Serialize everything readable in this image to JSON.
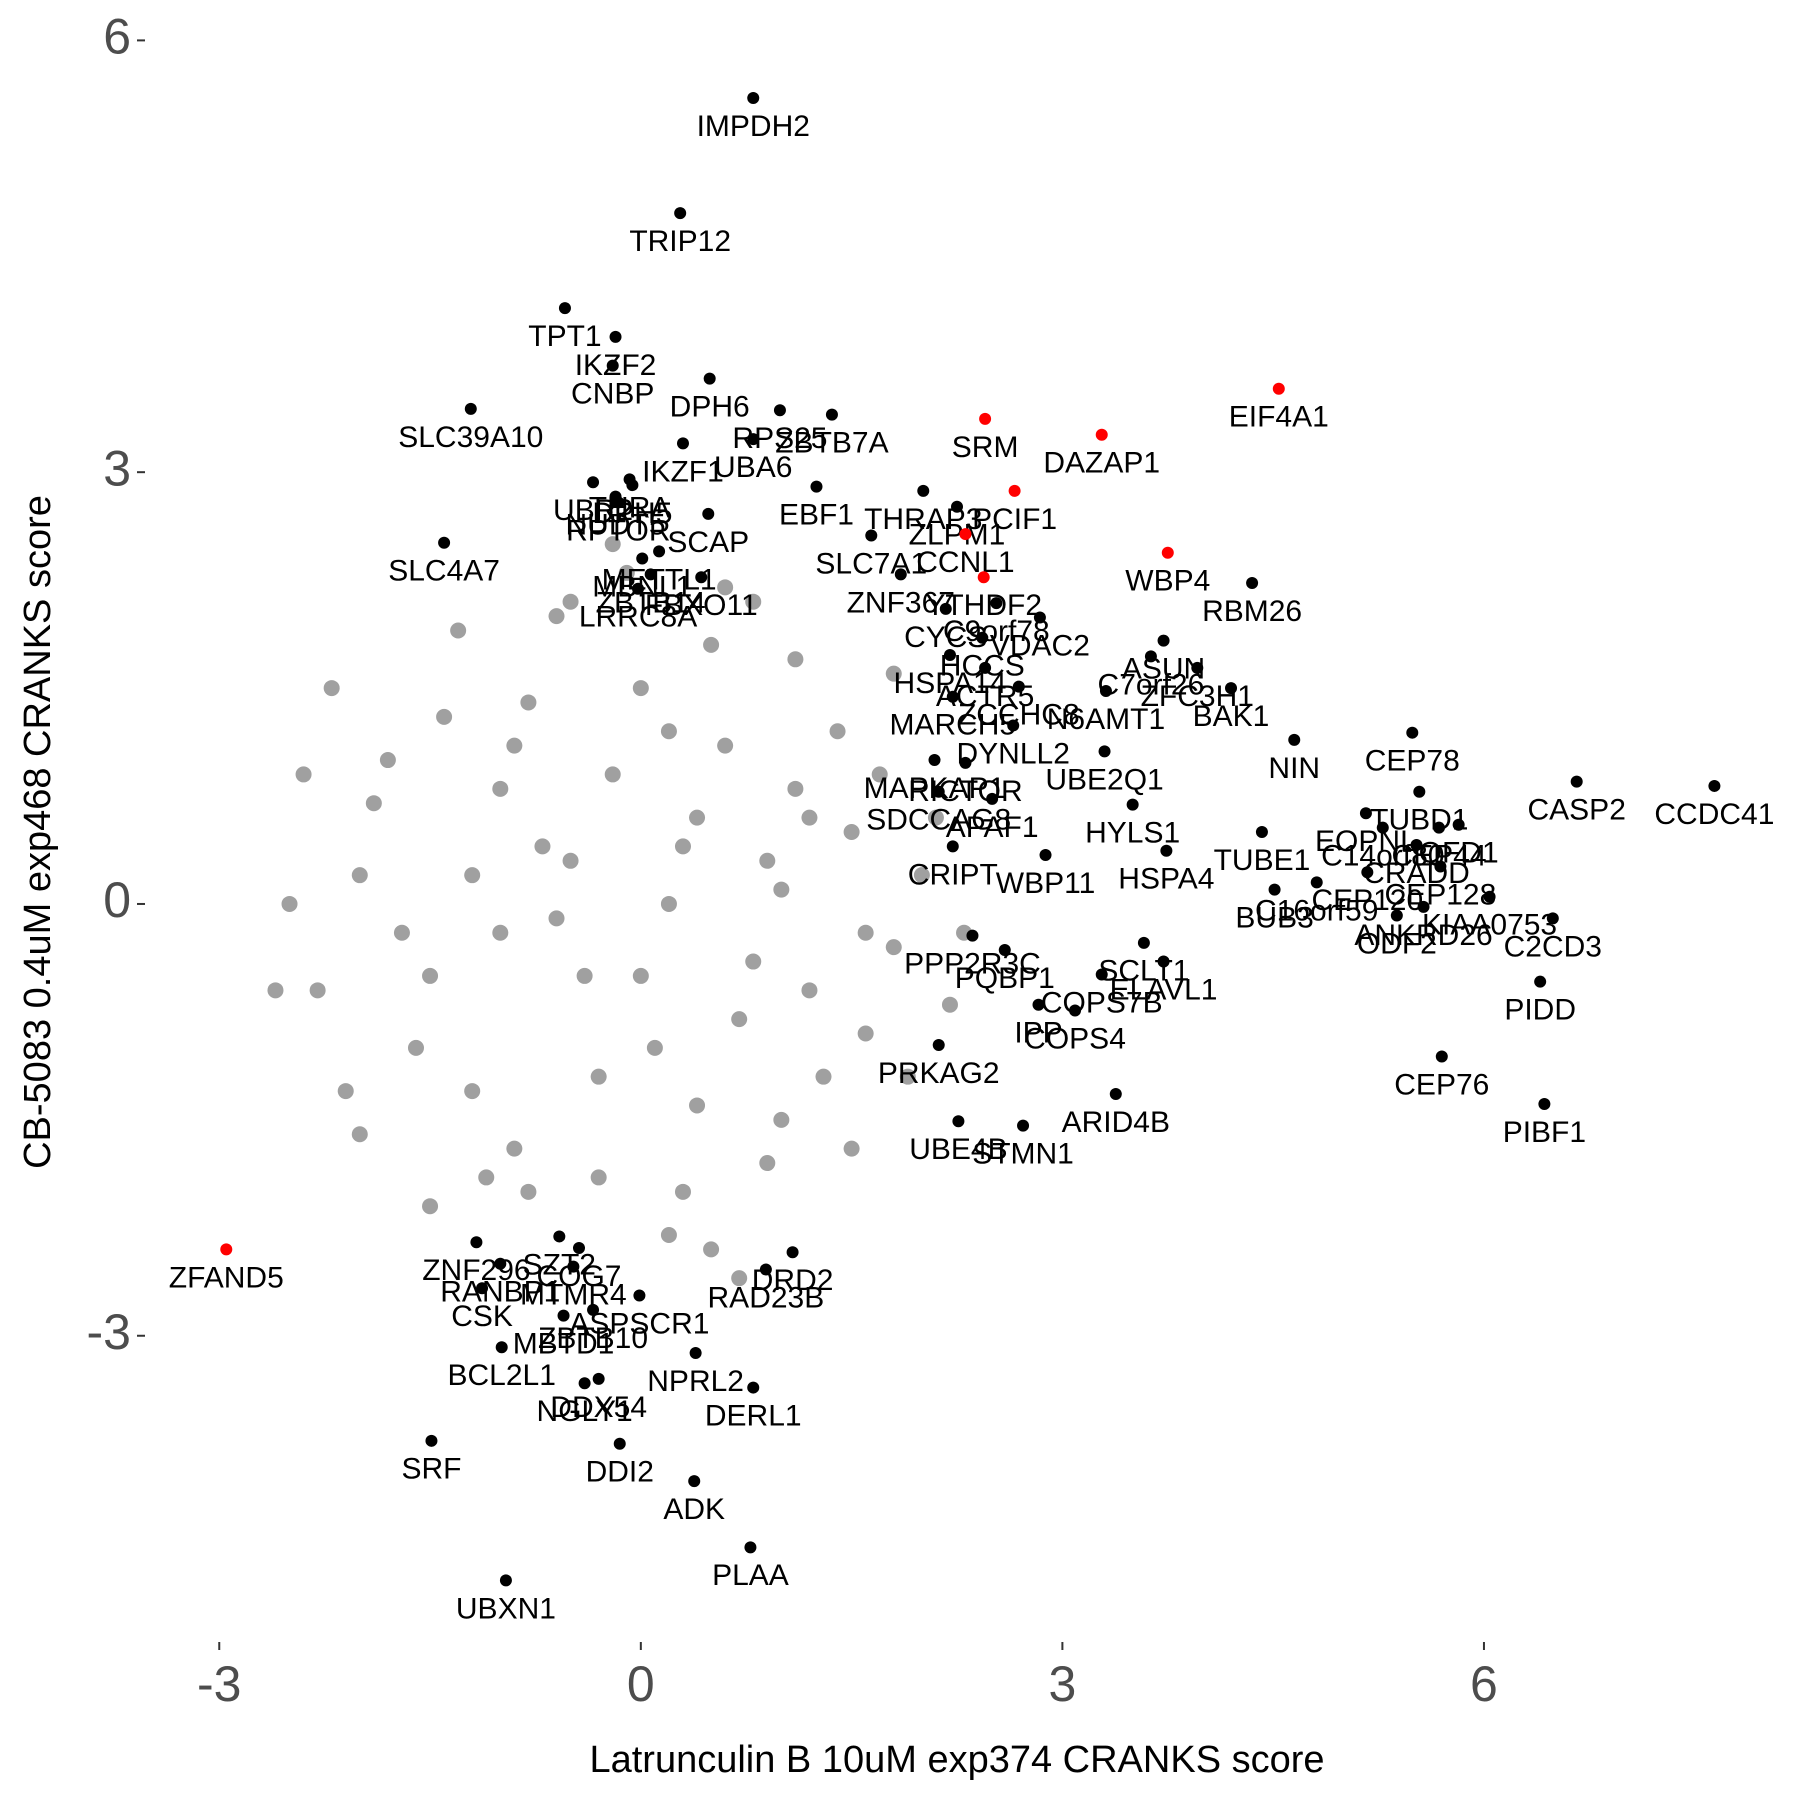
{
  "chart_data": {
    "type": "scatter",
    "xlabel": "Latrunculin B 10uM exp374 CRANKS score",
    "ylabel": "CB-5083 0.4uM exp468 CRANKS score",
    "xlim": [
      -3.5,
      8
    ],
    "ylim": [
      -5.1,
      6.1
    ],
    "xticks": [
      -3,
      0,
      3,
      6
    ],
    "yticks": [
      -3,
      0,
      3,
      6
    ],
    "series": [
      {
        "color": "#a0a0a0",
        "x": [
          0.2,
          -0.5,
          0.8,
          -1.0,
          1.2,
          -1.5,
          1.6,
          -2.0,
          2.0,
          0.0,
          0.5,
          -0.8,
          1.0,
          -1.2,
          1.4,
          -1.8,
          1.8,
          -2.3,
          0.3,
          -0.3,
          0.6,
          -0.6,
          0.9,
          -0.9,
          1.1,
          -1.1,
          1.3,
          -1.4,
          1.5,
          -1.6,
          0.1,
          -0.2,
          0.4,
          -0.4,
          0.7,
          -0.7,
          1.7,
          -1.7,
          1.9,
          -1.9,
          0.2,
          -0.1,
          0.5,
          -0.5,
          0.8,
          -0.8,
          1.0,
          -1.0,
          1.2,
          -1.2,
          -2.2,
          -2.5,
          -2.6,
          2.1,
          2.2,
          -2.1,
          0.0,
          0.3,
          -0.3,
          0.6,
          1.5,
          -1.3,
          0.9,
          -0.6,
          0.4,
          -0.9,
          1.1,
          -2.4,
          2.3,
          -2.0,
          1.8,
          -1.5,
          0.7,
          -0.2,
          0.2,
          1.6
        ],
        "y": [
          0.0,
          0.3,
          -0.4,
          0.8,
          0.6,
          -0.5,
          -0.9,
          0.2,
          0.2,
          1.5,
          1.8,
          1.4,
          -1.5,
          -1.3,
          1.2,
          1.0,
          -0.3,
          -0.6,
          -2.0,
          -1.9,
          2.2,
          2.0,
          -1.8,
          -1.7,
          1.7,
          -1.9,
          -1.2,
          1.3,
          0.5,
          -1.0,
          -1.0,
          0.9,
          0.6,
          -0.5,
          -0.8,
          0.4,
          0.9,
          -0.2,
          -1.2,
          0.7,
          -2.3,
          2.3,
          -2.4,
          2.1,
          2.1,
          -2.0,
          0.1,
          -0.2,
          -0.6,
          0.2,
          1.5,
          0.0,
          -0.6,
          0.6,
          -0.7,
          -1.3,
          -0.5,
          0.4,
          -1.2,
          1.1,
          -1.7,
          1.9,
          0.3,
          -0.1,
          -1.4,
          1.1,
          0.8,
          0.9,
          -0.2,
          -1.6,
          1.6,
          -2.1,
          -2.6,
          2.5,
          1.2,
          -0.2
        ]
      },
      {
        "color": "#000000",
        "x": [
          0.8,
          0.28,
          -0.54,
          -0.18,
          -0.2,
          0.49,
          -1.21,
          -0.08,
          0.3,
          0.8,
          1.36,
          0.99,
          -0.34,
          -0.06,
          1.25,
          2.01,
          2.25,
          1.64,
          -1.4,
          -0.16,
          0.48,
          -0.18,
          0.13,
          2.53,
          3.72,
          3.63,
          4.35,
          3.96,
          1.85,
          0.01,
          0.07,
          0.43,
          2.17,
          2.43,
          2.84,
          4.2,
          -0.02,
          2.2,
          2.45,
          3.31,
          4.65,
          5.49,
          2.22,
          2.69,
          2.65,
          3.3,
          2.09,
          2.31,
          5.54,
          5.68,
          6.66,
          7.64,
          5.16,
          2.5,
          3.5,
          4.42,
          5.82,
          5.28,
          2.22,
          2.12,
          3.74,
          5.52,
          6.04,
          2.88,
          4.51,
          6.49,
          5.38,
          6.4,
          5.17,
          3.58,
          2.36,
          2.59,
          4.81,
          5.57,
          5.69,
          2.83,
          3.28,
          3.72,
          2.12,
          3.09,
          5.7,
          6.43,
          3.38,
          2.26,
          2.72,
          -1.17,
          -1.0,
          -0.58,
          -0.44,
          1.08,
          -0.48,
          0.89,
          -1.13,
          -0.01,
          -0.55,
          -0.34,
          0.39,
          -0.99,
          -0.4,
          0.8,
          -0.3,
          -1.49,
          -0.15,
          0.38,
          0.78,
          -0.96
        ],
        "y": [
          5.6,
          4.8,
          4.14,
          3.94,
          3.74,
          3.65,
          3.44,
          2.95,
          3.2,
          3.23,
          3.4,
          3.43,
          2.93,
          2.91,
          2.9,
          2.87,
          2.76,
          2.56,
          2.51,
          2.79,
          2.71,
          2.83,
          2.45,
          2.09,
          1.83,
          1.72,
          2.23,
          1.64,
          2.29,
          2.4,
          2.29,
          2.27,
          2.05,
          1.85,
          1.99,
          1.5,
          2.19,
          1.73,
          1.64,
          1.48,
          1.14,
          1.19,
          1.44,
          1.51,
          1.24,
          1.06,
          1.0,
          0.98,
          0.78,
          0.53,
          0.85,
          0.82,
          0.63,
          0.73,
          0.69,
          0.5,
          0.55,
          0.53,
          0.4,
          0.78,
          0.37,
          0.41,
          0.05,
          0.34,
          0.1,
          -0.1,
          -0.08,
          -0.54,
          0.22,
          -0.27,
          -0.22,
          -0.32,
          0.15,
          -0.02,
          0.26,
          -0.7,
          -0.49,
          -0.4,
          -0.98,
          -0.74,
          -1.06,
          -1.39,
          -1.32,
          -1.51,
          -1.54,
          -2.35,
          -2.5,
          -2.31,
          -2.39,
          -2.42,
          -2.52,
          -2.54,
          -2.67,
          -2.72,
          -2.86,
          -2.82,
          -3.12,
          -3.08,
          -3.33,
          -3.36,
          -3.3,
          -3.73,
          -3.75,
          -4.01,
          -4.47,
          -4.7
        ],
        "labels": [
          "IMPDH2",
          "TRIP12",
          "TPT1",
          "IKZF2",
          "CNBP",
          "DPH6",
          "SLC39A10",
          "THRA",
          "IKZF1",
          "UBA6",
          "ZBTB7A",
          "RPS25",
          "UBR2",
          "DPH5",
          "EBF1",
          "THRAP3",
          "ZLPM1",
          "SLC7A1",
          "SLC4A7",
          "RPTOR",
          "SCAP",
          "NUDT5",
          "METTL1",
          "C9orf78",
          "ASUN",
          "C7orf26",
          "RBM26",
          "ZFC3H1",
          "ZNF367",
          "MBNL1",
          "ZBTB14",
          "FBXO11",
          "CYCS",
          "HCCS",
          "VDAC2",
          "BAK1",
          "LRRC8A",
          "HSPA14",
          "ACTR5",
          "N6AMT1",
          "NIN",
          "CEP78",
          "MARCH5",
          "ZCCHC8",
          "DYNLL2",
          "UBE2Q1",
          "MAPKAP1",
          "RICTOR",
          "TUBD1",
          "CEP44",
          "CASP2",
          "CCDC41",
          "EOPNL",
          "APAF1",
          "HYLS1",
          "TUBE1",
          "OFD1",
          "C14orf80",
          "CRIPT",
          "SDCCAG8",
          "HSPA4",
          "CRADD",
          "KIAA0753",
          "WBP11",
          "BUB3",
          "C2CD3",
          "ODF2",
          "PIDD",
          "CEP120",
          "SCLT1",
          "PPP2R3C",
          "PQBP1",
          "C16orf59",
          "ANKRD26",
          "CEP128",
          "IPP",
          "COPS7B",
          "ELAVL1",
          "PRKAG2",
          "COPS4",
          "CEP76",
          "PIBF1",
          "ARID4B",
          "UBE4B",
          "STMN1",
          "ZNF296",
          "RANBP1",
          "SZT2",
          "COG7",
          "DRD2",
          "MTMR4",
          "RAD23B",
          "CSK",
          "ASPSCR1",
          "MBTD1",
          "ZBTB10",
          "NPRL2",
          "BCL2L1",
          "NGLY1",
          "DERL1",
          "DDX54",
          "SRF",
          "DDI2",
          "ADK",
          "PLAA",
          "UBXN1"
        ]
      },
      {
        "color": "#ff0000",
        "x": [
          2.45,
          3.28,
          4.54,
          2.66,
          2.31,
          2.44,
          3.75,
          -2.95
        ],
        "y": [
          3.37,
          3.26,
          3.58,
          2.87,
          2.57,
          2.27,
          2.44,
          -2.4
        ],
        "labels": [
          "SRM",
          "DAZAP1",
          "EIF4A1",
          "PCIF1",
          "CCNL1",
          "YTHDF2",
          "WBP4",
          "ZFAND5"
        ]
      }
    ]
  }
}
